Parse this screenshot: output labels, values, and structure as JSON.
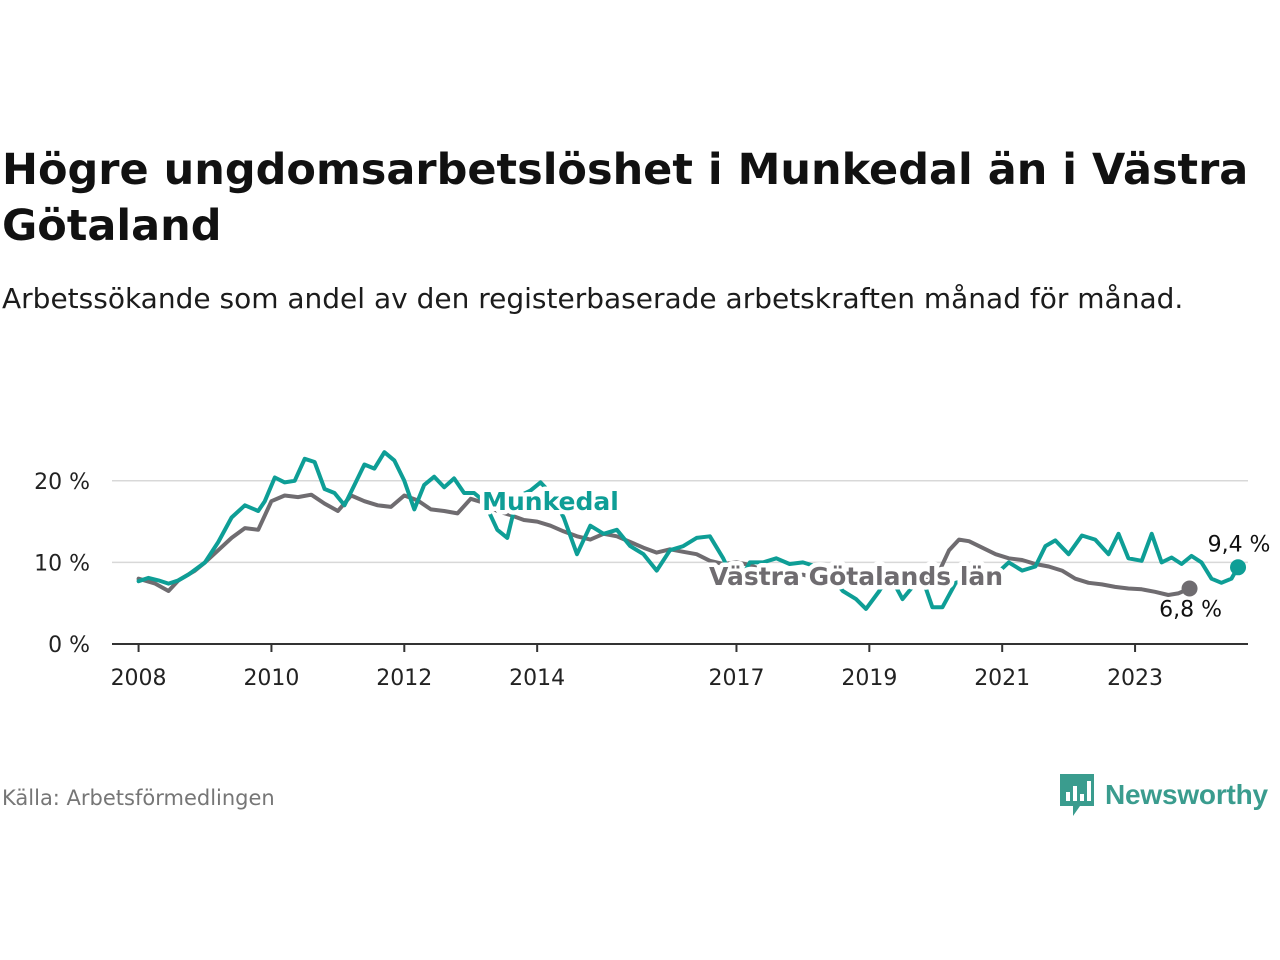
{
  "title": "Högre ungdomsarbetslöshet i Munkedal än i Västra Götaland",
  "subtitle": "Arbetssökande som andel av den registerbaserade arbetskraften månad för månad.",
  "source": "Källa: Arbetsförmedlingen",
  "brand": {
    "name": "Newsworthy",
    "icon": "newsworthy-bar-chart-icon"
  },
  "colors": {
    "munkedal": "#0e9e96",
    "vg": "#6f6c70",
    "grid": "#d8d8d8",
    "axis": "#333333"
  },
  "chart_data": {
    "type": "line",
    "title": "Högre ungdomsarbetslöshet i Munkedal än i Västra Götaland",
    "xlabel": "",
    "ylabel": "",
    "ylim": [
      0,
      25
    ],
    "xlim": [
      2007.6,
      2024.7
    ],
    "y_ticks": [
      0,
      10,
      20
    ],
    "y_tick_labels": [
      "0 %",
      "10 %",
      "20 %"
    ],
    "x_ticks": [
      2008,
      2010,
      2012,
      2014,
      2017,
      2019,
      2021,
      2023
    ],
    "x_tick_labels": [
      "2008",
      "2010",
      "2012",
      "2014",
      "2017",
      "2019",
      "2021",
      "2023"
    ],
    "grid": true,
    "series": [
      {
        "name": "Västra Götalands län",
        "color": "#6f6c70",
        "end_label": "6,8 %",
        "points": [
          [
            2008.0,
            8.0
          ],
          [
            2008.25,
            7.4
          ],
          [
            2008.45,
            6.5
          ],
          [
            2008.6,
            7.8
          ],
          [
            2008.85,
            9.0
          ],
          [
            2009.0,
            10.0
          ],
          [
            2009.2,
            11.5
          ],
          [
            2009.4,
            13.0
          ],
          [
            2009.6,
            14.2
          ],
          [
            2009.8,
            14.0
          ],
          [
            2010.0,
            17.5
          ],
          [
            2010.2,
            18.2
          ],
          [
            2010.4,
            18.0
          ],
          [
            2010.6,
            18.3
          ],
          [
            2010.8,
            17.2
          ],
          [
            2011.0,
            16.3
          ],
          [
            2011.2,
            18.2
          ],
          [
            2011.4,
            17.5
          ],
          [
            2011.6,
            17.0
          ],
          [
            2011.8,
            16.8
          ],
          [
            2012.0,
            18.2
          ],
          [
            2012.2,
            17.6
          ],
          [
            2012.4,
            16.5
          ],
          [
            2012.6,
            16.3
          ],
          [
            2012.8,
            16.0
          ],
          [
            2013.0,
            17.8
          ],
          [
            2013.2,
            17.3
          ],
          [
            2013.4,
            16.3
          ],
          [
            2013.6,
            15.8
          ],
          [
            2013.8,
            15.2
          ],
          [
            2014.0,
            15.0
          ],
          [
            2014.2,
            14.5
          ],
          [
            2014.4,
            13.8
          ],
          [
            2014.6,
            13.2
          ],
          [
            2014.8,
            12.8
          ],
          [
            2015.0,
            13.5
          ],
          [
            2015.2,
            13.2
          ],
          [
            2015.4,
            12.5
          ],
          [
            2015.6,
            11.8
          ],
          [
            2015.8,
            11.2
          ],
          [
            2016.0,
            11.6
          ],
          [
            2016.2,
            11.3
          ],
          [
            2016.4,
            11.0
          ],
          [
            2016.6,
            10.2
          ],
          [
            2016.8,
            9.8
          ],
          [
            2017.0,
            10.0
          ],
          [
            2017.2,
            9.7
          ],
          [
            2017.4,
            9.0
          ],
          [
            2017.6,
            8.5
          ],
          [
            2017.8,
            8.0
          ],
          [
            2018.0,
            8.5
          ],
          [
            2018.2,
            8.0
          ],
          [
            2018.4,
            7.8
          ],
          [
            2018.6,
            7.5
          ],
          [
            2018.8,
            7.5
          ],
          [
            2019.0,
            7.8
          ],
          [
            2019.2,
            8.2
          ],
          [
            2019.4,
            8.0
          ],
          [
            2019.6,
            7.8
          ],
          [
            2019.8,
            8.2
          ],
          [
            2020.0,
            8.0
          ],
          [
            2020.2,
            11.5
          ],
          [
            2020.35,
            12.8
          ],
          [
            2020.5,
            12.6
          ],
          [
            2020.7,
            11.8
          ],
          [
            2020.9,
            11.0
          ],
          [
            2021.1,
            10.5
          ],
          [
            2021.3,
            10.3
          ],
          [
            2021.5,
            9.8
          ],
          [
            2021.7,
            9.5
          ],
          [
            2021.9,
            9.0
          ],
          [
            2022.1,
            8.0
          ],
          [
            2022.3,
            7.5
          ],
          [
            2022.5,
            7.3
          ],
          [
            2022.7,
            7.0
          ],
          [
            2022.9,
            6.8
          ],
          [
            2023.1,
            6.7
          ],
          [
            2023.3,
            6.4
          ],
          [
            2023.5,
            6.0
          ],
          [
            2023.65,
            6.2
          ],
          [
            2023.82,
            6.8
          ]
        ]
      },
      {
        "name": "Munkedal",
        "color": "#0e9e96",
        "end_label": "9,4 %",
        "points": [
          [
            2008.0,
            7.7
          ],
          [
            2008.15,
            8.1
          ],
          [
            2008.3,
            7.8
          ],
          [
            2008.45,
            7.4
          ],
          [
            2008.6,
            7.8
          ],
          [
            2008.75,
            8.5
          ],
          [
            2009.0,
            10.0
          ],
          [
            2009.2,
            12.5
          ],
          [
            2009.4,
            15.5
          ],
          [
            2009.6,
            17.0
          ],
          [
            2009.8,
            16.3
          ],
          [
            2009.9,
            17.5
          ],
          [
            2010.05,
            20.4
          ],
          [
            2010.2,
            19.8
          ],
          [
            2010.35,
            20.0
          ],
          [
            2010.5,
            22.7
          ],
          [
            2010.65,
            22.3
          ],
          [
            2010.8,
            19.0
          ],
          [
            2010.95,
            18.5
          ],
          [
            2011.1,
            17.0
          ],
          [
            2011.25,
            19.5
          ],
          [
            2011.4,
            22.0
          ],
          [
            2011.55,
            21.5
          ],
          [
            2011.7,
            23.5
          ],
          [
            2011.85,
            22.5
          ],
          [
            2012.0,
            20.0
          ],
          [
            2012.15,
            16.5
          ],
          [
            2012.3,
            19.5
          ],
          [
            2012.45,
            20.5
          ],
          [
            2012.6,
            19.2
          ],
          [
            2012.75,
            20.3
          ],
          [
            2012.9,
            18.5
          ],
          [
            2013.05,
            18.5
          ],
          [
            2013.2,
            17.5
          ],
          [
            2013.4,
            14.0
          ],
          [
            2013.55,
            13.0
          ],
          [
            2013.7,
            18.0
          ],
          [
            2013.9,
            18.8
          ],
          [
            2014.05,
            19.8
          ],
          [
            2014.2,
            18.5
          ],
          [
            2014.4,
            15.5
          ],
          [
            2014.6,
            11.0
          ],
          [
            2014.8,
            14.5
          ],
          [
            2015.0,
            13.5
          ],
          [
            2015.2,
            14.0
          ],
          [
            2015.4,
            12.0
          ],
          [
            2015.6,
            11.0
          ],
          [
            2015.8,
            9.0
          ],
          [
            2016.0,
            11.5
          ],
          [
            2016.2,
            12.0
          ],
          [
            2016.4,
            13.0
          ],
          [
            2016.6,
            13.2
          ],
          [
            2016.8,
            10.5
          ],
          [
            2017.0,
            7.0
          ],
          [
            2017.2,
            10.0
          ],
          [
            2017.4,
            10.0
          ],
          [
            2017.6,
            10.5
          ],
          [
            2017.8,
            9.8
          ],
          [
            2018.0,
            10.0
          ],
          [
            2018.2,
            9.5
          ],
          [
            2018.4,
            8.5
          ],
          [
            2018.6,
            6.5
          ],
          [
            2018.8,
            5.5
          ],
          [
            2018.95,
            4.3
          ],
          [
            2019.15,
            6.5
          ],
          [
            2019.3,
            8.5
          ],
          [
            2019.5,
            5.5
          ],
          [
            2019.65,
            7.0
          ],
          [
            2019.8,
            8.0
          ],
          [
            2019.95,
            4.5
          ],
          [
            2020.1,
            4.5
          ],
          [
            2020.3,
            7.5
          ],
          [
            2020.6,
            8.2
          ],
          [
            2020.9,
            8.5
          ],
          [
            2021.1,
            10.0
          ],
          [
            2021.3,
            9.0
          ],
          [
            2021.5,
            9.5
          ],
          [
            2021.65,
            12.0
          ],
          [
            2021.8,
            12.7
          ],
          [
            2022.0,
            11.0
          ],
          [
            2022.2,
            13.3
          ],
          [
            2022.4,
            12.8
          ],
          [
            2022.6,
            11.0
          ],
          [
            2022.75,
            13.5
          ],
          [
            2022.9,
            10.5
          ],
          [
            2023.1,
            10.2
          ],
          [
            2023.25,
            13.5
          ],
          [
            2023.4,
            10.0
          ],
          [
            2023.55,
            10.6
          ],
          [
            2023.7,
            9.8
          ],
          [
            2023.85,
            10.8
          ],
          [
            2024.0,
            10.0
          ],
          [
            2024.15,
            8.0
          ],
          [
            2024.3,
            7.5
          ],
          [
            2024.45,
            8.0
          ],
          [
            2024.55,
            9.4
          ]
        ]
      }
    ],
    "annotations": [
      {
        "text": "Munkedal",
        "series": "Munkedal",
        "x": 2014.2,
        "y": 16.4
      },
      {
        "text": "Västra Götalands län",
        "series": "Västra Götalands län",
        "x": 2018.8,
        "y": 7.2
      }
    ]
  }
}
